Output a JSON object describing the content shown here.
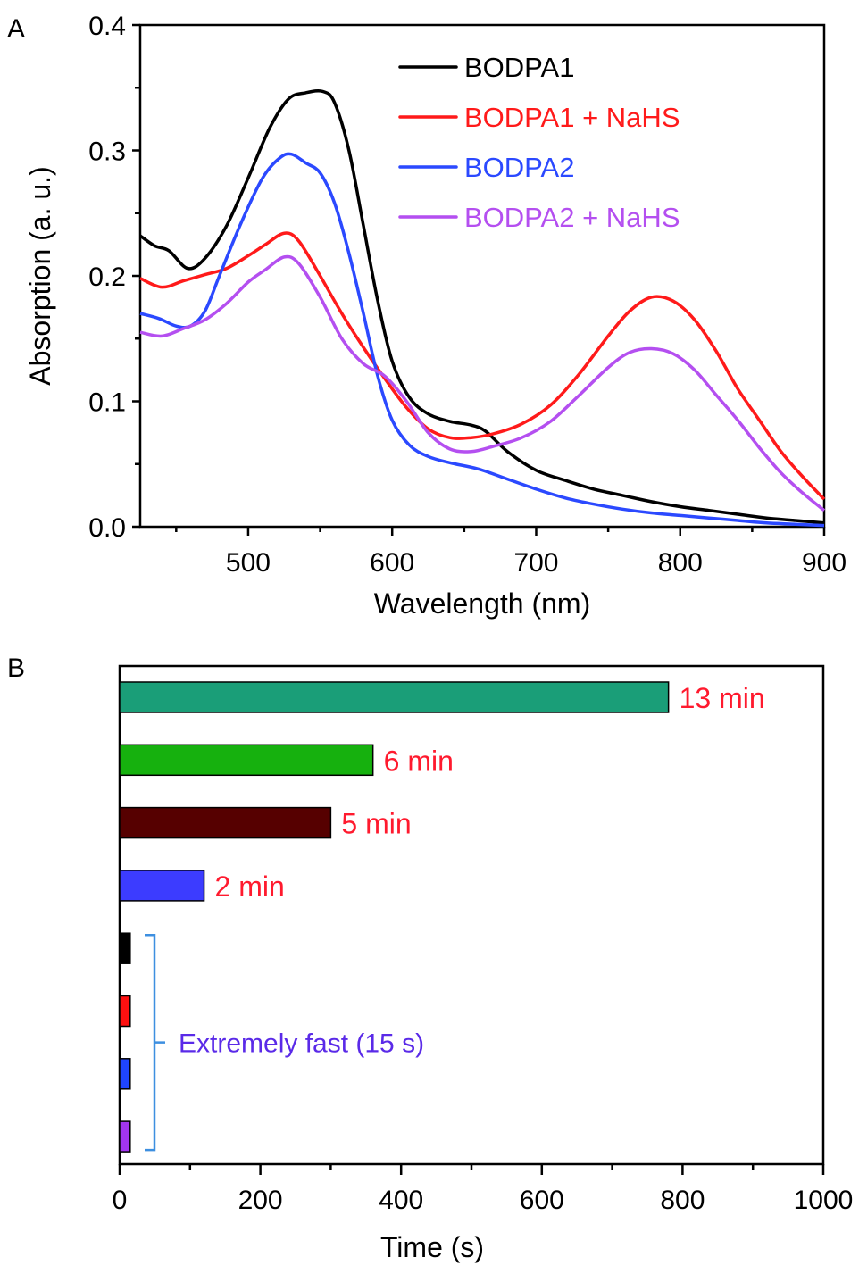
{
  "chart_data": [
    {
      "panel": "A",
      "type": "line",
      "title": "",
      "xlabel": "Wavelength (nm)",
      "ylabel": "Absorption (a. u.)",
      "xlim": [
        425,
        900
      ],
      "ylim": [
        0.0,
        0.4
      ],
      "xticks": [
        500,
        600,
        700,
        800,
        900
      ],
      "xtick_labels": [
        "500",
        "600",
        "700",
        "800",
        "900"
      ],
      "xminor_ticks": [
        450,
        550,
        650,
        750,
        850
      ],
      "yticks": [
        0.0,
        0.1,
        0.2,
        0.3,
        0.4
      ],
      "ytick_labels": [
        "0.0",
        "0.1",
        "0.2",
        "0.3",
        "0.4"
      ],
      "yminor_ticks": [
        0.05,
        0.15,
        0.25,
        0.35
      ],
      "grid": false,
      "legend_position": "top-right",
      "series": [
        {
          "name": "BODPA1",
          "color": "#000000",
          "x": [
            425,
            435,
            445,
            458,
            470,
            485,
            500,
            515,
            528,
            540,
            552,
            560,
            570,
            580,
            590,
            600,
            612,
            625,
            640,
            655,
            665,
            680,
            700,
            720,
            740,
            760,
            780,
            800,
            820,
            840,
            860,
            880,
            900
          ],
          "y": [
            0.232,
            0.224,
            0.22,
            0.206,
            0.214,
            0.24,
            0.278,
            0.318,
            0.341,
            0.346,
            0.347,
            0.338,
            0.3,
            0.24,
            0.18,
            0.132,
            0.103,
            0.09,
            0.084,
            0.081,
            0.076,
            0.06,
            0.045,
            0.037,
            0.03,
            0.025,
            0.02,
            0.016,
            0.013,
            0.01,
            0.007,
            0.005,
            0.003
          ]
        },
        {
          "name": "BODPA1 + NaHS",
          "color": "#ff1a1a",
          "x": [
            425,
            440,
            455,
            470,
            485,
            500,
            512,
            525,
            535,
            550,
            565,
            580,
            595,
            610,
            625,
            640,
            655,
            670,
            690,
            710,
            730,
            750,
            765,
            780,
            795,
            810,
            825,
            840,
            855,
            870,
            885,
            900
          ],
          "y": [
            0.198,
            0.191,
            0.196,
            0.201,
            0.206,
            0.216,
            0.225,
            0.234,
            0.228,
            0.2,
            0.17,
            0.143,
            0.118,
            0.095,
            0.078,
            0.071,
            0.071,
            0.074,
            0.082,
            0.097,
            0.122,
            0.152,
            0.172,
            0.183,
            0.18,
            0.165,
            0.14,
            0.11,
            0.085,
            0.06,
            0.04,
            0.022
          ]
        },
        {
          "name": "BODPA2",
          "color": "#2b49ff",
          "x": [
            425,
            438,
            450,
            460,
            470,
            480,
            495,
            510,
            522,
            530,
            540,
            550,
            560,
            570,
            580,
            590,
            600,
            612,
            625,
            640,
            660,
            680,
            700,
            720,
            740,
            760,
            780,
            800,
            820,
            840,
            860,
            880,
            900
          ],
          "y": [
            0.17,
            0.166,
            0.16,
            0.16,
            0.172,
            0.2,
            0.242,
            0.278,
            0.294,
            0.297,
            0.29,
            0.282,
            0.258,
            0.218,
            0.17,
            0.12,
            0.085,
            0.065,
            0.056,
            0.051,
            0.046,
            0.038,
            0.03,
            0.023,
            0.018,
            0.014,
            0.011,
            0.009,
            0.007,
            0.005,
            0.003,
            0.002,
            0.001
          ]
        },
        {
          "name": "BODPA2 + NaHS",
          "color": "#b44ff0",
          "x": [
            425,
            440,
            455,
            470,
            485,
            500,
            512,
            525,
            535,
            550,
            565,
            580,
            595,
            610,
            625,
            640,
            655,
            670,
            690,
            710,
            730,
            750,
            765,
            780,
            795,
            810,
            825,
            840,
            855,
            870,
            885,
            900
          ],
          "y": [
            0.155,
            0.152,
            0.158,
            0.165,
            0.178,
            0.195,
            0.205,
            0.215,
            0.21,
            0.183,
            0.15,
            0.13,
            0.12,
            0.1,
            0.075,
            0.062,
            0.06,
            0.064,
            0.071,
            0.084,
            0.105,
            0.127,
            0.139,
            0.142,
            0.138,
            0.125,
            0.105,
            0.085,
            0.063,
            0.043,
            0.027,
            0.013
          ]
        }
      ]
    },
    {
      "panel": "B",
      "type": "bar",
      "orientation": "horizontal",
      "title": "",
      "xlabel": "Time (s)",
      "ylabel": "",
      "xlim": [
        0,
        1000
      ],
      "xticks": [
        0,
        200,
        400,
        600,
        800,
        1000
      ],
      "xtick_labels": [
        "0",
        "200",
        "400",
        "600",
        "800",
        "1000"
      ],
      "xminor_ticks": [
        100,
        300,
        500,
        700,
        900
      ],
      "grid": false,
      "bars": [
        {
          "value": 780,
          "label": "13 min",
          "color": "#1a9e78"
        },
        {
          "value": 360,
          "label": "6 min",
          "color": "#16b10e"
        },
        {
          "value": 300,
          "label": "5 min",
          "color": "#560000"
        },
        {
          "value": 120,
          "label": "2 min",
          "color": "#3c3cff"
        },
        {
          "value": 15,
          "label": "",
          "color": "#000000"
        },
        {
          "value": 15,
          "label": "",
          "color": "#ff1010"
        },
        {
          "value": 15,
          "label": "",
          "color": "#1f45ff"
        },
        {
          "value": 15,
          "label": "",
          "color": "#a335f0"
        }
      ],
      "bar_label_color": "#ff1a2e",
      "annotation": {
        "text": "Extremely fast (15 s)",
        "color": "#5a2ae8",
        "bracket_color": "#3d8fe0",
        "applies_to_bars": [
          4,
          5,
          6,
          7
        ]
      }
    }
  ],
  "panels": {
    "a_letter": "A",
    "b_letter": "B"
  }
}
